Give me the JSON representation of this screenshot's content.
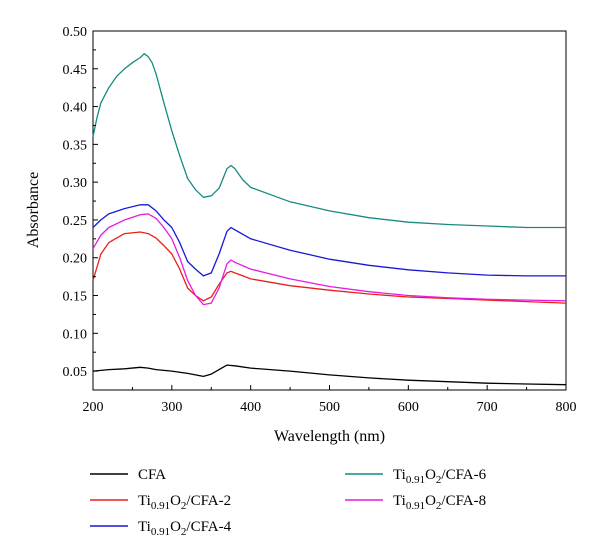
{
  "chart_data": {
    "type": "line",
    "title": "",
    "xlabel": "Wavelength (nm)",
    "ylabel": "Absorbance",
    "xlim": [
      200,
      800
    ],
    "ylim": [
      0.025,
      0.5
    ],
    "xticks": [
      "200",
      "300",
      "400",
      "500",
      "600",
      "700",
      "800"
    ],
    "yticks": [
      "0.05",
      "0.10",
      "0.15",
      "0.20",
      "0.25",
      "0.30",
      "0.35",
      "0.40",
      "0.45",
      "0.50"
    ],
    "grid": false,
    "legend_position": "bottom",
    "series": [
      {
        "name": "CFA",
        "legend": {
          "base": "CFA",
          "sub": "",
          "mid": "",
          "sub2": "",
          "tail": ""
        },
        "color": "#000000",
        "x": [
          200,
          220,
          240,
          260,
          270,
          280,
          300,
          320,
          340,
          350,
          360,
          370,
          380,
          400,
          450,
          500,
          550,
          600,
          650,
          700,
          750,
          800
        ],
        "y": [
          0.05,
          0.052,
          0.053,
          0.055,
          0.054,
          0.052,
          0.05,
          0.047,
          0.043,
          0.046,
          0.052,
          0.058,
          0.057,
          0.054,
          0.05,
          0.045,
          0.041,
          0.038,
          0.036,
          0.034,
          0.033,
          0.032
        ]
      },
      {
        "name": "Ti0.91O2/CFA-2",
        "legend": {
          "base": "Ti",
          "sub": "0.91",
          "mid": "O",
          "sub2": "2",
          "tail": "/CFA-2"
        },
        "color": "#e8201c",
        "x": [
          200,
          210,
          220,
          240,
          260,
          270,
          280,
          290,
          300,
          310,
          320,
          330,
          340,
          350,
          360,
          370,
          375,
          380,
          400,
          450,
          500,
          550,
          600,
          650,
          700,
          750,
          800
        ],
        "y": [
          0.17,
          0.205,
          0.22,
          0.232,
          0.234,
          0.232,
          0.226,
          0.216,
          0.205,
          0.185,
          0.16,
          0.15,
          0.143,
          0.148,
          0.165,
          0.18,
          0.182,
          0.18,
          0.172,
          0.163,
          0.157,
          0.152,
          0.148,
          0.146,
          0.144,
          0.142,
          0.14
        ]
      },
      {
        "name": "Ti0.91O2/CFA-4",
        "legend": {
          "base": "Ti",
          "sub": "0.91",
          "mid": "O",
          "sub2": "2",
          "tail": "/CFA-4"
        },
        "color": "#1818d8",
        "x": [
          200,
          210,
          220,
          240,
          260,
          270,
          280,
          290,
          300,
          310,
          320,
          330,
          340,
          350,
          360,
          370,
          375,
          380,
          400,
          450,
          500,
          550,
          600,
          650,
          700,
          750,
          800
        ],
        "y": [
          0.24,
          0.25,
          0.258,
          0.265,
          0.27,
          0.27,
          0.262,
          0.25,
          0.24,
          0.22,
          0.195,
          0.185,
          0.176,
          0.18,
          0.205,
          0.235,
          0.24,
          0.237,
          0.225,
          0.21,
          0.198,
          0.19,
          0.184,
          0.18,
          0.177,
          0.176,
          0.176
        ]
      },
      {
        "name": "Ti0.91O2/CFA-6",
        "legend": {
          "base": "Ti",
          "sub": "0.91",
          "mid": "O",
          "sub2": "2",
          "tail": "/CFA-6"
        },
        "color": "#178a82",
        "x": [
          200,
          205,
          210,
          220,
          230,
          240,
          250,
          260,
          265,
          270,
          275,
          280,
          290,
          300,
          310,
          320,
          330,
          340,
          350,
          360,
          370,
          375,
          380,
          390,
          400,
          450,
          500,
          550,
          600,
          650,
          700,
          750,
          800
        ],
        "y": [
          0.36,
          0.385,
          0.405,
          0.425,
          0.44,
          0.45,
          0.458,
          0.465,
          0.47,
          0.466,
          0.458,
          0.443,
          0.405,
          0.368,
          0.335,
          0.305,
          0.29,
          0.28,
          0.282,
          0.292,
          0.318,
          0.322,
          0.318,
          0.303,
          0.293,
          0.274,
          0.262,
          0.253,
          0.247,
          0.244,
          0.242,
          0.24,
          0.24
        ]
      },
      {
        "name": "Ti0.91O2/CFA-8",
        "legend": {
          "base": "Ti",
          "sub": "0.91",
          "mid": "O",
          "sub2": "2",
          "tail": "/CFA-8"
        },
        "color": "#e81ae0",
        "x": [
          200,
          210,
          220,
          240,
          260,
          270,
          280,
          290,
          300,
          310,
          320,
          330,
          340,
          350,
          360,
          370,
          375,
          380,
          400,
          450,
          500,
          550,
          600,
          650,
          700,
          750,
          800
        ],
        "y": [
          0.212,
          0.23,
          0.24,
          0.25,
          0.257,
          0.258,
          0.252,
          0.24,
          0.225,
          0.2,
          0.17,
          0.15,
          0.138,
          0.14,
          0.16,
          0.192,
          0.197,
          0.194,
          0.185,
          0.172,
          0.162,
          0.155,
          0.15,
          0.147,
          0.145,
          0.144,
          0.143
        ]
      }
    ]
  }
}
